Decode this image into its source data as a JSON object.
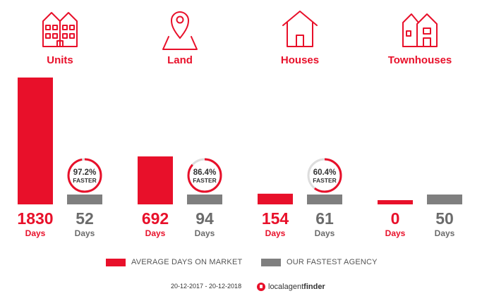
{
  "chart_data": {
    "type": "bar",
    "categories": [
      "Units",
      "Land",
      "Houses",
      "Townhouses"
    ],
    "series": [
      {
        "name": "AVERAGE DAYS ON MARKET",
        "values": [
          1830,
          692,
          154,
          0
        ]
      },
      {
        "name": "OUR FASTEST AGENCY",
        "values": [
          52,
          94,
          61,
          50
        ]
      }
    ],
    "faster_percent": [
      97.2,
      86.4,
      60.4,
      null
    ],
    "faster_labels": [
      "97.2%",
      "86.4%",
      "60.4%",
      ""
    ],
    "faster_word": "FASTER",
    "unit_label": "Days",
    "icons": [
      "units-icon",
      "land-pin-icon",
      "house-icon",
      "townhouses-icon"
    ],
    "ylim": [
      0,
      1830
    ],
    "legend_position": "bottom",
    "grid": false
  },
  "colors": {
    "primary": "#e8102a",
    "secondary": "#7f7f7f",
    "value_secondary": "#6b6b6b",
    "ring_track": "#dddddd"
  },
  "legend": {
    "average": "AVERAGE DAYS ON MARKET",
    "fastest": "OUR FASTEST AGENCY"
  },
  "footer": {
    "date_range": "20-12-2017 - 20-12-2018",
    "brand_prefix": "local",
    "brand_middle": "agent",
    "brand_suffix": "finder"
  }
}
